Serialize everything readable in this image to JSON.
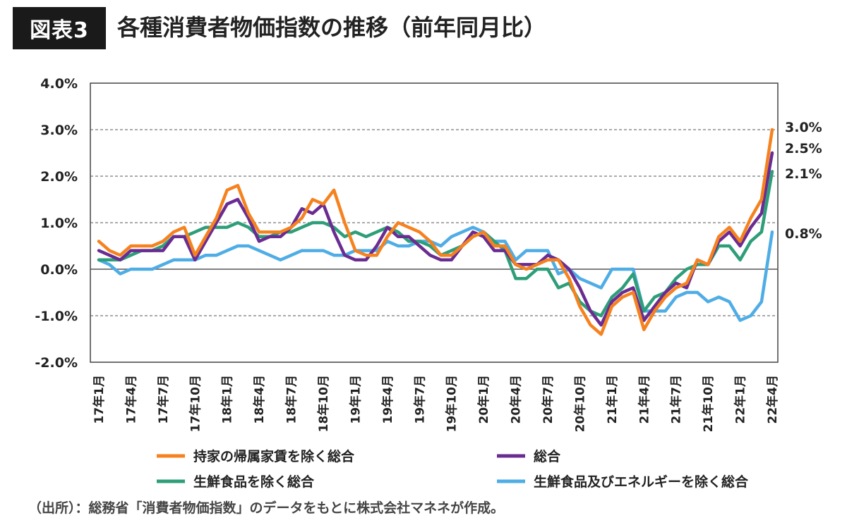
{
  "figure": {
    "badge": "図表3",
    "title": "各種消費者物価指数の推移（前年同月比）",
    "source": "（出所）：総務省「消費者物価指数」のデータをもとに株式会社マネネが作成。"
  },
  "chart_data": {
    "type": "line",
    "ylim": [
      -2.0,
      4.0
    ],
    "yticks": [
      "4.0%",
      "3.0%",
      "2.0%",
      "1.0%",
      "0.0%",
      "-1.0%",
      "-2.0%"
    ],
    "grid": "dashed horizontal at 3.0%, 2.0%, 1.0%, -1.0%; solid at 0.0%",
    "legend_position": "bottom",
    "xtick_labels": [
      "17年1月",
      "17年4月",
      "17年7月",
      "17年10月",
      "18年1月",
      "18年4月",
      "18年7月",
      "18年10月",
      "19年1月",
      "19年4月",
      "19年7月",
      "19年10月",
      "20年1月",
      "20年4月",
      "20年7月",
      "20年10月",
      "21年1月",
      "21年4月",
      "21年7月",
      "21年10月",
      "22年1月",
      "22年4月"
    ],
    "x": [
      "17-01",
      "17-02",
      "17-03",
      "17-04",
      "17-05",
      "17-06",
      "17-07",
      "17-08",
      "17-09",
      "17-10",
      "17-11",
      "17-12",
      "18-01",
      "18-02",
      "18-03",
      "18-04",
      "18-05",
      "18-06",
      "18-07",
      "18-08",
      "18-09",
      "18-10",
      "18-11",
      "18-12",
      "19-01",
      "19-02",
      "19-03",
      "19-04",
      "19-05",
      "19-06",
      "19-07",
      "19-08",
      "19-09",
      "19-10",
      "19-11",
      "19-12",
      "20-01",
      "20-02",
      "20-03",
      "20-04",
      "20-05",
      "20-06",
      "20-07",
      "20-08",
      "20-09",
      "20-10",
      "20-11",
      "20-12",
      "21-01",
      "21-02",
      "21-03",
      "21-04",
      "21-05",
      "21-06",
      "21-07",
      "21-08",
      "21-09",
      "21-10",
      "21-11",
      "21-12",
      "22-01",
      "22-02",
      "22-03",
      "22-04"
    ],
    "series": [
      {
        "name": "持家の帰属家賃を除く総合",
        "color": "#f5821f",
        "values": [
          0.6,
          0.4,
          0.3,
          0.5,
          0.5,
          0.5,
          0.6,
          0.8,
          0.9,
          0.3,
          0.7,
          1.1,
          1.7,
          1.8,
          1.2,
          0.8,
          0.8,
          0.8,
          0.9,
          1.1,
          1.5,
          1.4,
          1.7,
          1.0,
          0.4,
          0.3,
          0.3,
          0.7,
          1.0,
          0.9,
          0.8,
          0.6,
          0.3,
          0.3,
          0.5,
          0.7,
          0.8,
          0.5,
          0.5,
          0.1,
          0.0,
          0.1,
          0.2,
          0.2,
          -0.2,
          -0.8,
          -1.2,
          -1.4,
          -0.8,
          -0.6,
          -0.5,
          -1.3,
          -0.9,
          -0.6,
          -0.4,
          -0.3,
          0.2,
          0.1,
          0.7,
          0.9,
          0.6,
          1.1,
          1.5,
          3.0
        ]
      },
      {
        "name": "総合",
        "color": "#6a2c91",
        "values": [
          0.4,
          0.3,
          0.2,
          0.4,
          0.4,
          0.4,
          0.4,
          0.7,
          0.7,
          0.2,
          0.6,
          1.0,
          1.4,
          1.5,
          1.1,
          0.6,
          0.7,
          0.7,
          0.9,
          1.3,
          1.2,
          1.4,
          0.8,
          0.3,
          0.2,
          0.2,
          0.5,
          0.9,
          0.7,
          0.7,
          0.5,
          0.3,
          0.2,
          0.2,
          0.5,
          0.8,
          0.7,
          0.4,
          0.4,
          0.1,
          0.1,
          0.1,
          0.3,
          0.2,
          0.0,
          -0.4,
          -0.9,
          -1.2,
          -0.7,
          -0.5,
          -0.4,
          -1.1,
          -0.8,
          -0.5,
          -0.3,
          -0.4,
          0.2,
          0.1,
          0.6,
          0.8,
          0.5,
          0.9,
          1.2,
          2.5
        ]
      },
      {
        "name": "生鮮食品を除く総合",
        "color": "#2e9e79",
        "values": [
          0.2,
          0.2,
          0.2,
          0.3,
          0.4,
          0.4,
          0.5,
          0.7,
          0.7,
          0.8,
          0.9,
          0.9,
          0.9,
          1.0,
          0.9,
          0.7,
          0.7,
          0.8,
          0.8,
          0.9,
          1.0,
          1.0,
          0.9,
          0.7,
          0.8,
          0.7,
          0.8,
          0.9,
          0.8,
          0.6,
          0.6,
          0.5,
          0.3,
          0.4,
          0.5,
          0.7,
          0.8,
          0.6,
          0.4,
          -0.2,
          -0.2,
          0.0,
          0.0,
          -0.4,
          -0.3,
          -0.7,
          -0.9,
          -1.0,
          -0.6,
          -0.4,
          -0.1,
          -0.9,
          -0.6,
          -0.5,
          -0.2,
          0.0,
          0.1,
          0.1,
          0.5,
          0.5,
          0.2,
          0.6,
          0.8,
          2.1
        ]
      },
      {
        "name": "生鮮食品及びエネルギーを除く総合",
        "color": "#4fade6",
        "values": [
          0.2,
          0.1,
          -0.1,
          0.0,
          0.0,
          0.0,
          0.1,
          0.2,
          0.2,
          0.2,
          0.3,
          0.3,
          0.4,
          0.5,
          0.5,
          0.4,
          0.3,
          0.2,
          0.3,
          0.4,
          0.4,
          0.4,
          0.3,
          0.3,
          0.4,
          0.4,
          0.4,
          0.6,
          0.5,
          0.5,
          0.6,
          0.6,
          0.5,
          0.7,
          0.8,
          0.9,
          0.8,
          0.6,
          0.6,
          0.2,
          0.4,
          0.4,
          0.4,
          -0.1,
          0.0,
          -0.2,
          -0.3,
          -0.4,
          0.0,
          0.0,
          0.0,
          -0.9,
          -0.9,
          -0.9,
          -0.6,
          -0.5,
          -0.5,
          -0.7,
          -0.6,
          -0.7,
          -1.1,
          -1.0,
          -0.7,
          0.8
        ]
      }
    ],
    "end_labels": [
      "3.0%",
      "2.5%",
      "2.1%",
      "0.8%"
    ]
  }
}
